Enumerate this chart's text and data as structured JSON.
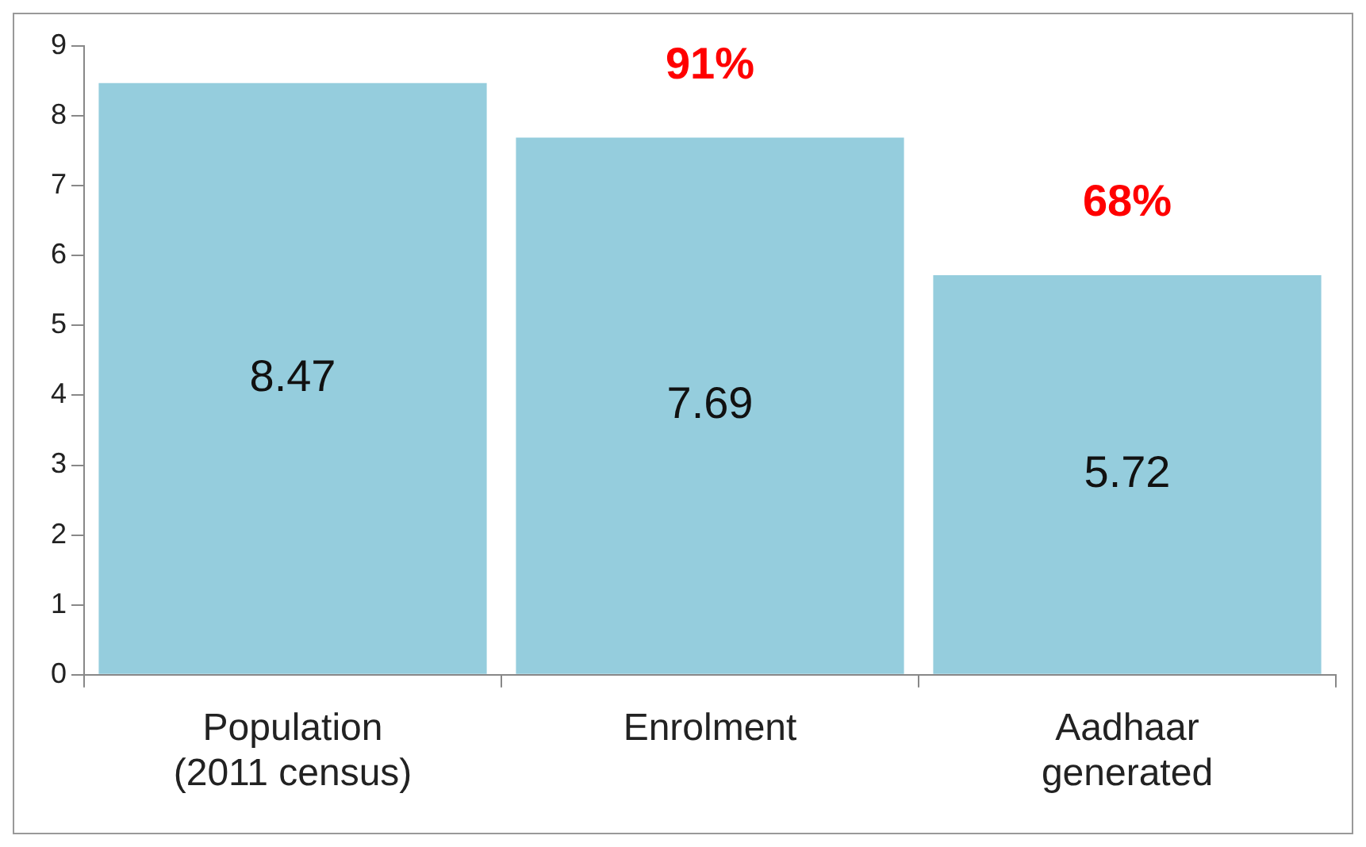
{
  "chart_data": {
    "type": "bar",
    "categories": [
      "Population (2011 census)",
      "Enrolment",
      "Aadhaar generated"
    ],
    "values": [
      8.47,
      7.69,
      5.72
    ],
    "color": "#95cddd",
    "ylim": [
      0,
      9
    ],
    "yticks": [
      0,
      1,
      2,
      3,
      4,
      5,
      6,
      7,
      8,
      9
    ],
    "grid": false,
    "legend": false,
    "data_labels": true,
    "annotations": [
      "91%",
      "68%"
    ]
  }
}
